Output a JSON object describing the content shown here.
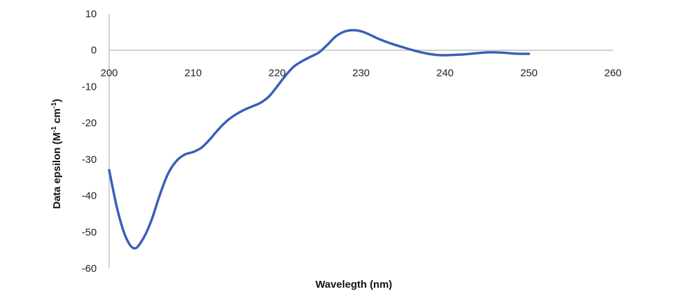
{
  "chart_data": {
    "type": "line",
    "title": "",
    "xlabel": "Wavelegth (nm)",
    "ylabel_parts": {
      "before": "Data epsilon (M",
      "sup1": "-1",
      "middle": " cm",
      "sup2": "-1",
      "after": ")"
    },
    "xlim": [
      200,
      260
    ],
    "ylim": [
      -60,
      10
    ],
    "x_ticks": [
      200,
      210,
      220,
      230,
      240,
      250,
      260
    ],
    "y_ticks": [
      10,
      0,
      -10,
      -20,
      -30,
      -40,
      -50,
      -60
    ],
    "x_tick_labels": [
      "200",
      "210",
      "220",
      "230",
      "240",
      "250",
      "260"
    ],
    "y_tick_labels": [
      "10",
      "0",
      "-10",
      "-20",
      "-30",
      "-40",
      "-50",
      "-60"
    ],
    "line_color": "#3a5fb8",
    "axis_color": "#b3b3b3",
    "grid": false,
    "series": [
      {
        "x": [
          200,
          201,
          202,
          203,
          204,
          205,
          206,
          207,
          208,
          209,
          210,
          211,
          212,
          213,
          214,
          215,
          216,
          217,
          218,
          219,
          220,
          221,
          222,
          223,
          224,
          225,
          226,
          227,
          228,
          229,
          230,
          231,
          232,
          233,
          234,
          235,
          236,
          237,
          238,
          239,
          240,
          241,
          242,
          243,
          244,
          245,
          246,
          247,
          248,
          249,
          250
        ],
        "y": [
          -33,
          -44,
          -51.5,
          -54.5,
          -52,
          -47,
          -40,
          -34,
          -30.5,
          -28.7,
          -28,
          -26.8,
          -24.5,
          -21.8,
          -19.5,
          -17.8,
          -16.5,
          -15.5,
          -14.5,
          -12.8,
          -10,
          -7,
          -4.5,
          -3,
          -1.8,
          -0.6,
          1.5,
          3.8,
          5.1,
          5.5,
          5.2,
          4.3,
          3.2,
          2.3,
          1.5,
          0.8,
          0.1,
          -0.5,
          -1,
          -1.3,
          -1.4,
          -1.3,
          -1.2,
          -1,
          -0.8,
          -0.6,
          -0.6,
          -0.7,
          -0.9,
          -1,
          -1
        ]
      }
    ]
  }
}
